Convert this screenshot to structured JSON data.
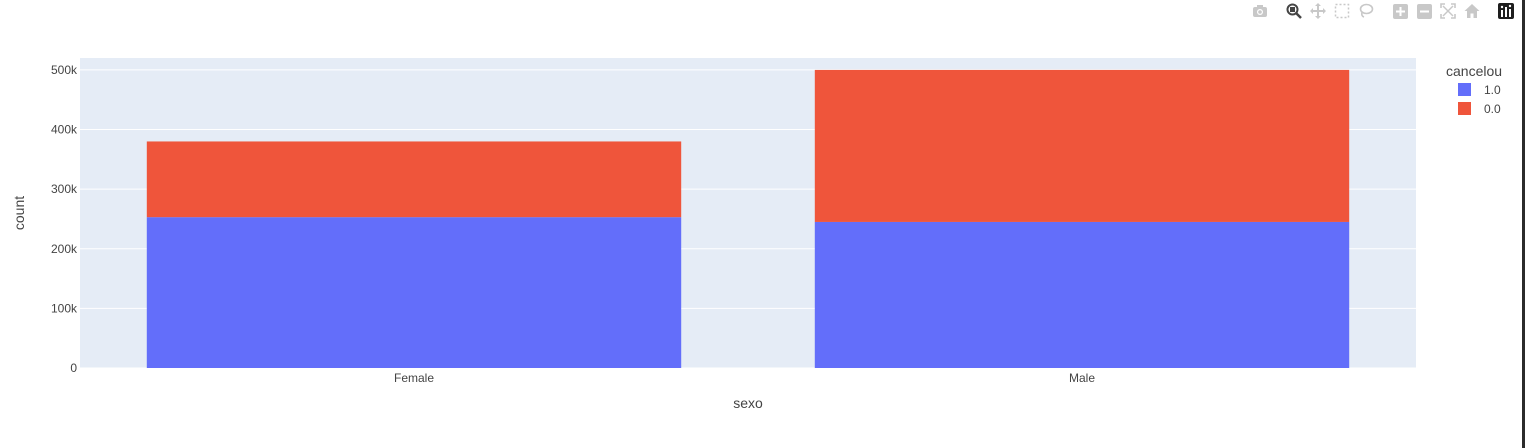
{
  "colors": {
    "series_1": "#636efa",
    "series_0": "#ef553b",
    "plot_bg": "#e5ecf6",
    "text": "#444444",
    "modebar": "#c8c8c8",
    "modebar_active": "#444444"
  },
  "modebar": {
    "icons": [
      "camera-icon",
      "zoom-icon",
      "pan-icon",
      "box-select-icon",
      "lasso-icon",
      "zoom-in-icon",
      "zoom-out-icon",
      "autoscale-icon",
      "reset-axes-icon",
      "plotly-logo-icon"
    ]
  },
  "chart_data": {
    "type": "bar",
    "barmode": "stack",
    "categories": [
      "Female",
      "Male"
    ],
    "series": [
      {
        "name": "1.0",
        "values": [
          253000,
          245000
        ]
      },
      {
        "name": "0.0",
        "values": [
          127000,
          255000
        ]
      }
    ],
    "xlabel": "sexo",
    "ylabel": "count",
    "ylim": [
      0,
      520000
    ],
    "yticks": [
      0,
      100000,
      200000,
      300000,
      400000,
      500000
    ],
    "ytick_labels": [
      "0",
      "100k",
      "200k",
      "300k",
      "400k",
      "500k"
    ],
    "legend_title": "cancelou",
    "legend_position": "right",
    "grid": true
  }
}
